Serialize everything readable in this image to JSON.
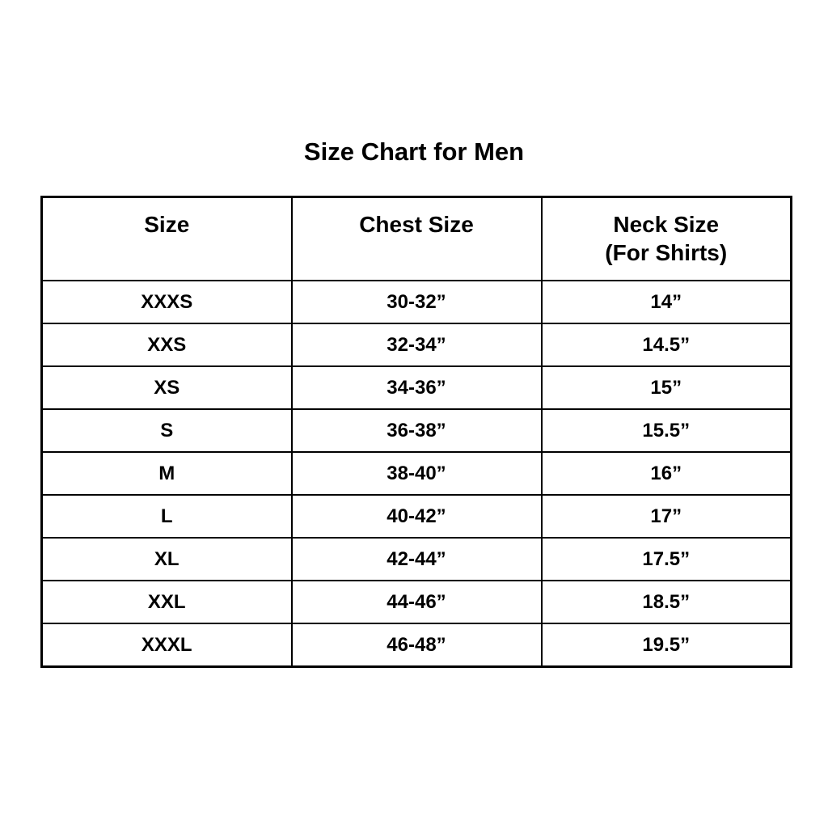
{
  "colors": {
    "background": "#ffffff",
    "text": "#000000",
    "border": "#000000"
  },
  "title": "Size Chart for Men",
  "chart_data": {
    "type": "table",
    "title": "Size Chart for Men",
    "columns": [
      {
        "label": "Size",
        "sublabel": ""
      },
      {
        "label": "Chest Size",
        "sublabel": ""
      },
      {
        "label": "Neck Size",
        "sublabel": "(For Shirts)"
      }
    ],
    "rows": [
      [
        "XXXS",
        "30-32”",
        "14”"
      ],
      [
        "XXS",
        "32-34”",
        "14.5”"
      ],
      [
        "XS",
        "34-36”",
        "15”"
      ],
      [
        "S",
        "36-38”",
        "15.5”"
      ],
      [
        "M",
        "38-40”",
        "16”"
      ],
      [
        "L",
        "40-42”",
        "17”"
      ],
      [
        "XL",
        "42-44”",
        "17.5”"
      ],
      [
        "XXL",
        "44-46”",
        "18.5”"
      ],
      [
        "XXXL",
        "46-48”",
        "19.5”"
      ]
    ]
  }
}
